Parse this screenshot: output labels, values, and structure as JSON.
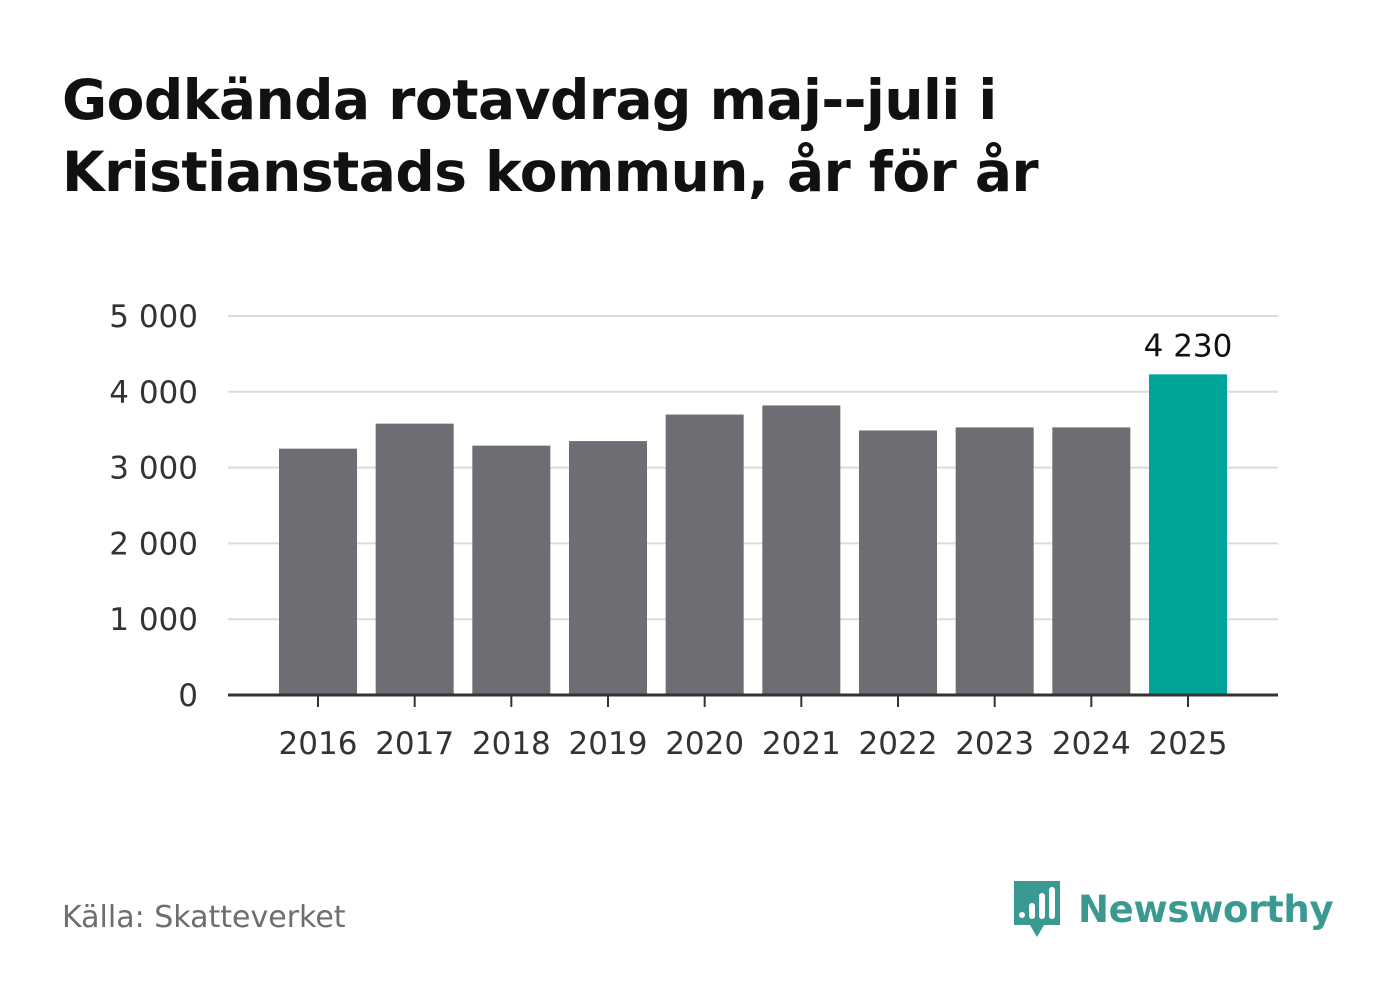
{
  "title_line1": "Godkända rotavdrag maj--juli i",
  "title_line2": "Kristianstads kommun, år för år",
  "source": "Källa: Skatteverket",
  "brand": "Newsworthy",
  "colors": {
    "bar": "#6e6d73",
    "highlight": "#00a499",
    "grid": "#dcdcdc",
    "axis": "#333333",
    "brand": "#3a9a92"
  },
  "chart_data": {
    "type": "bar",
    "categories": [
      "2016",
      "2017",
      "2018",
      "2019",
      "2020",
      "2021",
      "2022",
      "2023",
      "2024",
      "2025"
    ],
    "values": [
      3250,
      3580,
      3290,
      3350,
      3700,
      3820,
      3490,
      3530,
      3530,
      4230
    ],
    "highlight_index": 9,
    "data_labels": [
      {
        "index": 9,
        "text": "4 230"
      }
    ],
    "yticks": [
      0,
      1000,
      2000,
      3000,
      4000,
      5000
    ],
    "ytick_labels": [
      "0",
      "1 000",
      "2 000",
      "3 000",
      "4 000",
      "5 000"
    ],
    "ylim": [
      0,
      5000
    ],
    "grid": true
  }
}
